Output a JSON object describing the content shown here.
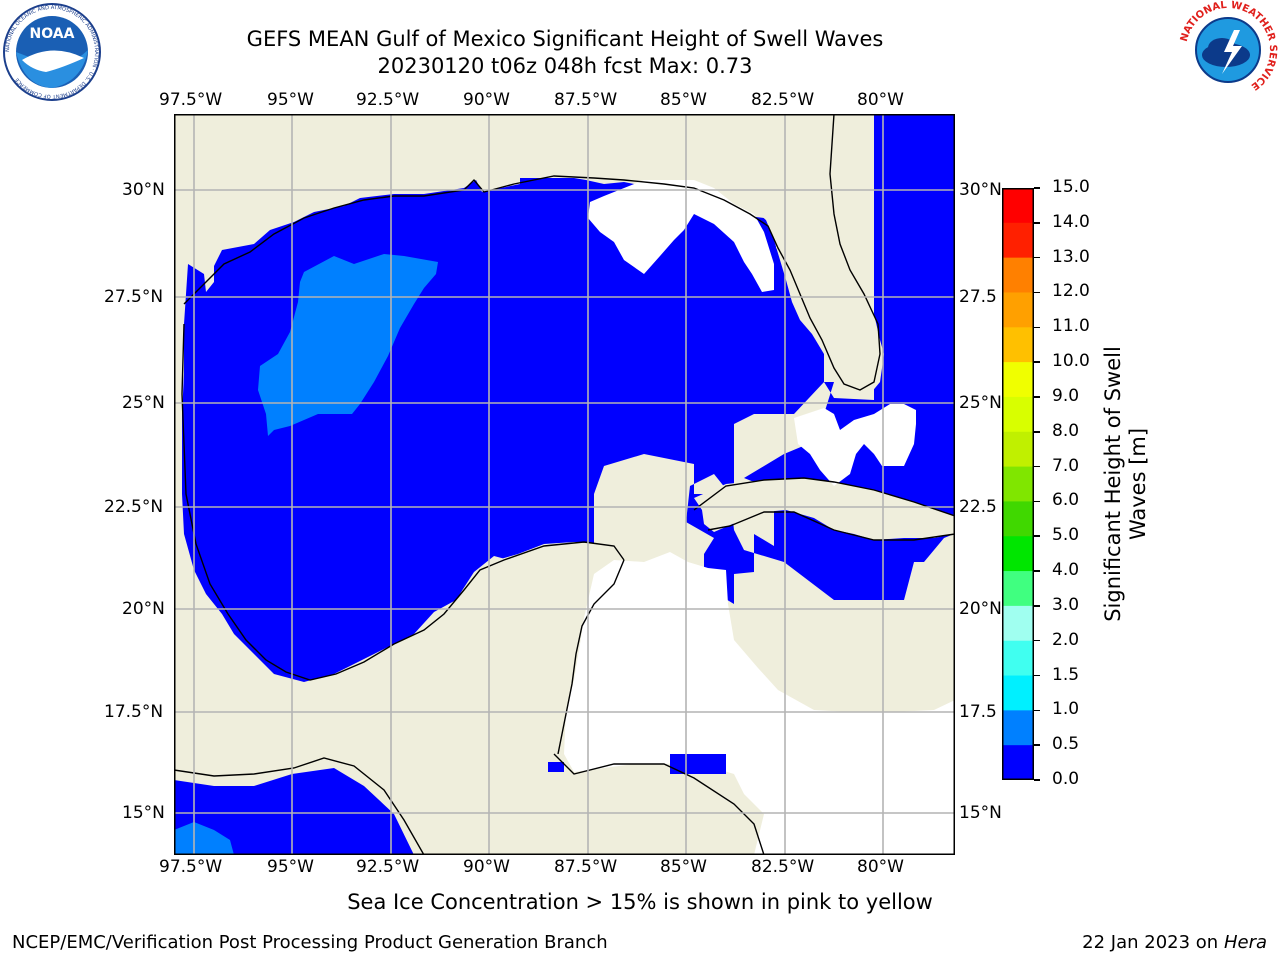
{
  "title": {
    "line1": "GEFS MEAN Gulf of Mexico Significant Height of Swell Waves",
    "line2": "20230120 t06z 048h fcst   Max: 0.73"
  },
  "logos": {
    "noaa": {
      "text": "NOAA",
      "ring_text": "NATIONAL OCEANIC AND ATMOSPHERIC ADMINISTRATION · U.S. DEPARTMENT OF COMMERCE"
    },
    "nws": {
      "ring_text": "NATIONAL WEATHER SERVICE"
    }
  },
  "map": {
    "lon_ticks": [
      "97.5°W",
      "95°W",
      "92.5°W",
      "90°W",
      "87.5°W",
      "85°W",
      "82.5°W",
      "80°W"
    ],
    "lat_ticks_left": [
      "30°N",
      "27.5°N",
      "25°N",
      "22.5°N",
      "20°N",
      "17.5°N",
      "15°N"
    ],
    "lat_ticks_right": [
      "30°N",
      "27.5",
      "25°N",
      "22.5",
      "20°N",
      "17.5",
      "15°N"
    ],
    "colors": {
      "land": "#efeedc",
      "water_low": "#0000ff",
      "water_mid": "#0080ff",
      "no_data": "#ffffff",
      "grid": "#b4b4b4"
    }
  },
  "colorbar": {
    "label": "Significant Height of Swell Waves [m]",
    "label_line1": "Significant Height of Swell",
    "label_line2": "Waves [m]",
    "ticks": [
      "15.0",
      "14.0",
      "13.0",
      "12.0",
      "11.0",
      "10.0",
      "9.0",
      "8.0",
      "7.0",
      "6.0",
      "5.0",
      "4.0",
      "3.0",
      "2.0",
      "1.5",
      "1.0",
      "0.5",
      "0.0"
    ],
    "colors_top_to_bottom": [
      "#ff0000",
      "#ff2000",
      "#ff5000",
      "#ff8000",
      "#ffa000",
      "#ffc000",
      "#ffe600",
      "#f0ff00",
      "#d8ff00",
      "#c0f000",
      "#80e600",
      "#40d800",
      "#00e600",
      "#40ff80",
      "#a0fff0",
      "#40fff0",
      "#00f0ff",
      "#0080ff",
      "#0000ff"
    ]
  },
  "subtitle": "Sea Ice Concentration > 15% is shown in pink to yellow",
  "footer": {
    "left": "NCEP/EMC/Verification Post Processing Product Generation Branch",
    "right_date": "22 Jan 2023 on ",
    "right_host": "Hera"
  }
}
